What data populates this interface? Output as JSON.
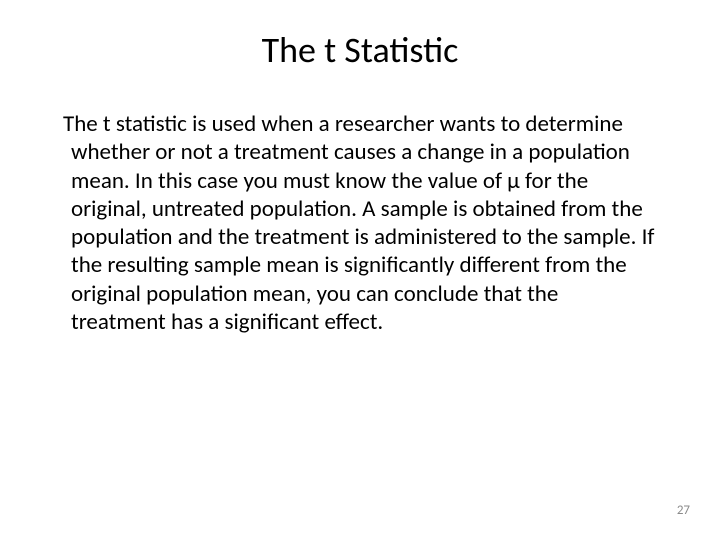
{
  "slide": {
    "title": "The t Statistic",
    "body": "The t statistic is used when a researcher wants to determine whether or not a treatment causes a change in a population mean.  In this case you must know the value of μ for the original, untreated population.  A sample is obtained from the population and the treatment is administered to the sample.  If the resulting sample mean is significantly different from the original population mean, you can conclude that the treatment has a significant effect.",
    "page_number": "27"
  },
  "style": {
    "background_color": "#ffffff",
    "title_color": "#000000",
    "title_fontsize": 36,
    "body_color": "#000000",
    "body_fontsize": 23,
    "page_number_color": "#8a8a8a",
    "page_number_fontsize": 13,
    "font_family": "Calibri, Arial, sans-serif"
  }
}
